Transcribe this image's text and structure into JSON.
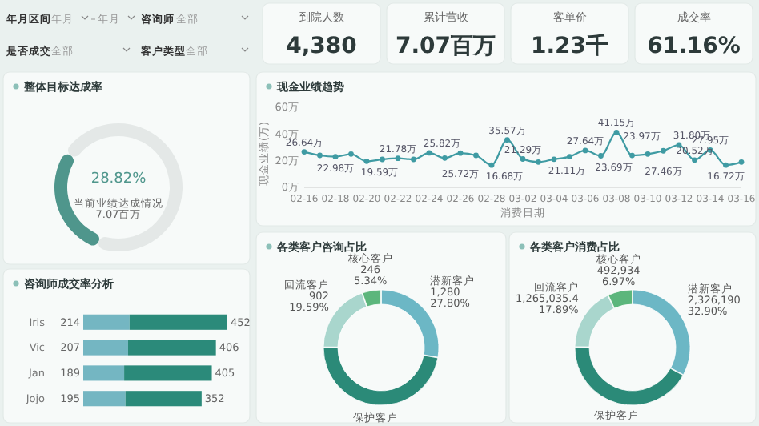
{
  "chart_data": [
    {
      "type": "other",
      "categories": [
        "到院人数",
        "累计营收",
        "客单价",
        "成交率"
      ],
      "value_labels": [
        "4,380",
        "7.07百万",
        "1.23千",
        "61.16%"
      ],
      "annotations": [
        "年月区间",
        "年月",
        "年月",
        "咨询师",
        "全部",
        "是否成交",
        "全部",
        "客户类型",
        "全部"
      ]
    },
    {
      "type": "donut",
      "title": "整体目标达成率",
      "categories": [
        null,
        null
      ],
      "values": [
        28.82,
        71.18
      ],
      "colors": [
        "#4f968c",
        "#e4e8e7"
      ],
      "annotations": [
        "28.82%",
        "当前业绩达成情况",
        "7.07百万"
      ]
    },
    {
      "type": "line",
      "title": "现金业绩趋势",
      "xlabel": "消费日期",
      "ylabel": "现金业绩(万)",
      "categories": [
        "02-16",
        null,
        "02-18",
        null,
        "02-20",
        null,
        "02-22",
        null,
        "02-24",
        null,
        "02-26",
        null,
        "02-28",
        null,
        "03-02",
        null,
        "03-04",
        null,
        "03-06",
        null,
        "03-08",
        null,
        "03-10",
        null,
        "03-12",
        null,
        "03-14",
        null,
        "03-16"
      ],
      "ylim": [
        0,
        60
      ],
      "yticks": [
        {
          "value": 0,
          "label": "0万"
        },
        {
          "value": 20,
          "label": "20万"
        },
        {
          "value": 40,
          "label": "40万"
        },
        {
          "value": 60,
          "label": "60万"
        }
      ],
      "marker": "circle",
      "line_style": "solid",
      "series": [
        {
          "color": "#3f9ba3",
          "values": [
            26.64,
            24,
            22.98,
            25,
            19.59,
            21,
            21.78,
            21,
            25.82,
            22,
            25.72,
            24,
            16.68,
            35.57,
            21.29,
            19,
            21.11,
            23,
            27.64,
            23.69,
            41.15,
            23.97,
            25,
            27.46,
            31.8,
            20.52,
            27.95,
            16.72,
            19
          ],
          "value_labels": [
            "26.64万",
            null,
            "22.98万",
            null,
            "19.59万",
            null,
            "21.78万",
            null,
            "25.82万",
            null,
            "25.72万",
            null,
            "16.68万",
            "35.57万",
            "21.29万",
            null,
            "21.11万",
            null,
            "27.64万",
            "23.69万",
            "41.15万",
            "23.97万",
            null,
            "27.46万",
            "31.80万",
            "20.52万",
            "27.95万",
            "16.72万",
            null
          ]
        }
      ]
    },
    {
      "type": "bar",
      "title": "咨询师成交率分析",
      "orientation": "horizontal",
      "stacked": true,
      "categories": [
        "Iris",
        "Vic",
        "Jan",
        "Jojo"
      ],
      "data_labels": true,
      "series": [
        {
          "color": "#74b6c2",
          "values": [
            214,
            207,
            189,
            195
          ]
        },
        {
          "color": "#2b8a7a",
          "values": [
            452,
            406,
            405,
            352
          ]
        }
      ]
    },
    {
      "type": "donut",
      "title": "各类客户咨询占比",
      "categories": [
        "潜新客户",
        "保护客户",
        "回流客户",
        "核心客户"
      ],
      "values": [
        1280,
        2178,
        902,
        246
      ],
      "colors": [
        "#6cb7c5",
        "#2b8a78",
        "#a9d6cd",
        "#5cb67c"
      ],
      "value_labels": [
        "1,280\n27.80%",
        null,
        "902\n19.59%",
        "246\n5.34%"
      ]
    },
    {
      "type": "donut",
      "title": "各类客户消费占比",
      "categories": [
        "潜新客户",
        "保护客户",
        "回流客户",
        "核心客户"
      ],
      "values": [
        2326190,
        2985840,
        1265035.4,
        492934
      ],
      "colors": [
        "#6cb7c5",
        "#2b8a78",
        "#a9d6cd",
        "#5cb67c"
      ],
      "value_labels": [
        "2,326,190\n32.90%",
        null,
        "1,265,035.4\n17.89%",
        "492,934\n6.97%"
      ]
    }
  ]
}
